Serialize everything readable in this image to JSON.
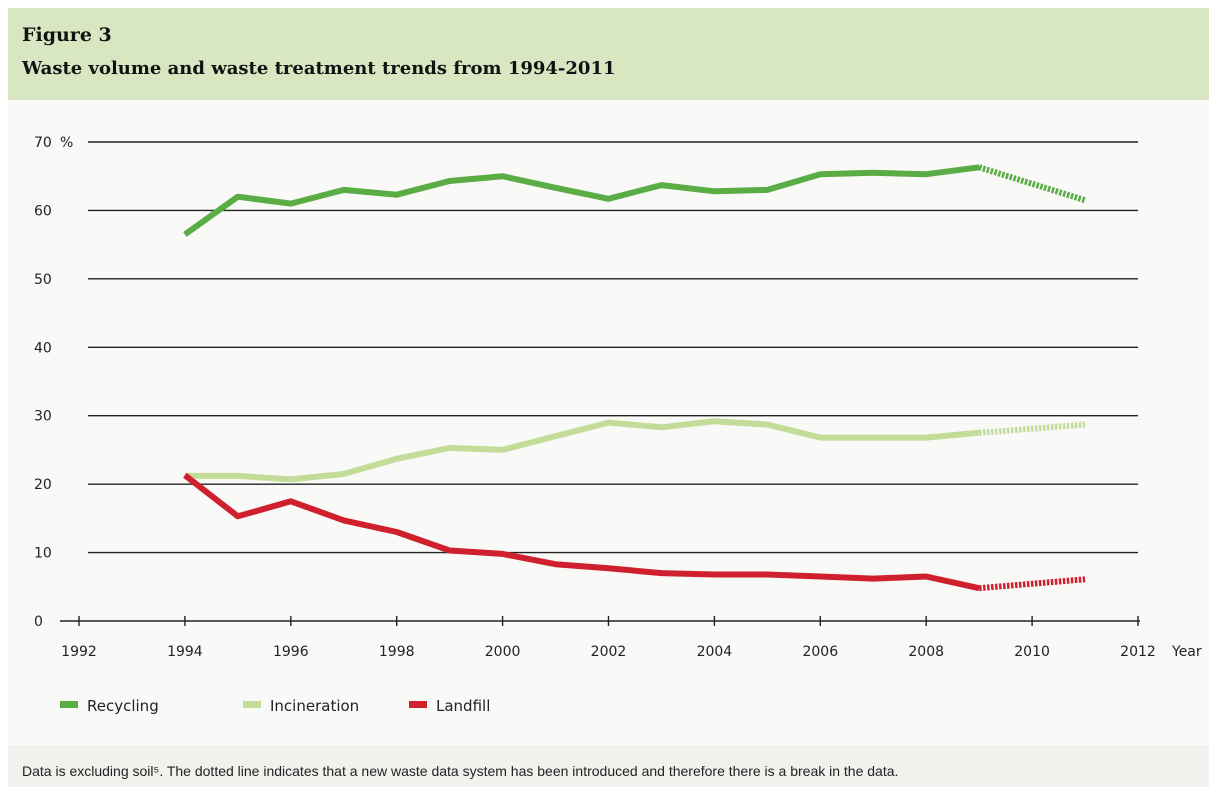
{
  "figure": {
    "label": "Figure 3",
    "title": "Waste volume and waste treatment trends from 1994-2011",
    "footnote": "Data is excluding soil⁵. The dotted line indicates that a new waste data system has been introduced and therefore there is a break in the data."
  },
  "chart_data": {
    "type": "line",
    "title": "Waste volume and waste treatment trends from 1994-2011",
    "xlabel": "Year",
    "ylabel": "%",
    "xlim": [
      1992,
      2012
    ],
    "ylim": [
      0,
      70
    ],
    "x_ticks": [
      "1992",
      "1994",
      "1996",
      "1998",
      "2000",
      "2002",
      "2004",
      "2006",
      "2008",
      "2010",
      "2012"
    ],
    "y_ticks": [
      "0",
      "10",
      "20",
      "30",
      "40",
      "50",
      "60",
      "70"
    ],
    "grid": "horizontal",
    "legend_position": "bottom-left",
    "series": [
      {
        "name": "Recycling",
        "color": "#5aac45",
        "x": [
          1994,
          1995,
          1996,
          1997,
          1998,
          1999,
          2000,
          2001,
          2002,
          2003,
          2004,
          2005,
          2006,
          2007,
          2008,
          2009
        ],
        "values": [
          56.5,
          62,
          61,
          63,
          62.3,
          64.3,
          65,
          63.3,
          61.7,
          63.7,
          62.8,
          63,
          65.3,
          65.5,
          65.3,
          66.3
        ],
        "dotted_x": [
          2009,
          2011
        ],
        "dotted_values": [
          66.3,
          61.5
        ]
      },
      {
        "name": "Incineration",
        "color": "#c3dc98",
        "x": [
          1994,
          1995,
          1996,
          1997,
          1998,
          1999,
          2000,
          2001,
          2002,
          2003,
          2004,
          2005,
          2006,
          2007,
          2008,
          2009
        ],
        "values": [
          21.2,
          21.2,
          20.7,
          21.5,
          23.7,
          25.3,
          25,
          27,
          29,
          28.3,
          29.2,
          28.7,
          26.8,
          26.8,
          26.8,
          27.5
        ],
        "dotted_x": [
          2009,
          2011
        ],
        "dotted_values": [
          27.5,
          28.7
        ]
      },
      {
        "name": "Landfill",
        "color": "#d0202e",
        "x": [
          1994,
          1995,
          1996,
          1997,
          1998,
          1999,
          2000,
          2001,
          2002,
          2003,
          2004,
          2005,
          2006,
          2007,
          2008,
          2009
        ],
        "values": [
          21.3,
          15.3,
          17.5,
          14.7,
          13,
          10.3,
          9.8,
          8.3,
          7.7,
          7,
          6.8,
          6.8,
          6.5,
          6.2,
          6.5,
          4.8
        ],
        "dotted_x": [
          2009,
          2011
        ],
        "dotted_values": [
          4.8,
          6.1
        ]
      }
    ]
  }
}
